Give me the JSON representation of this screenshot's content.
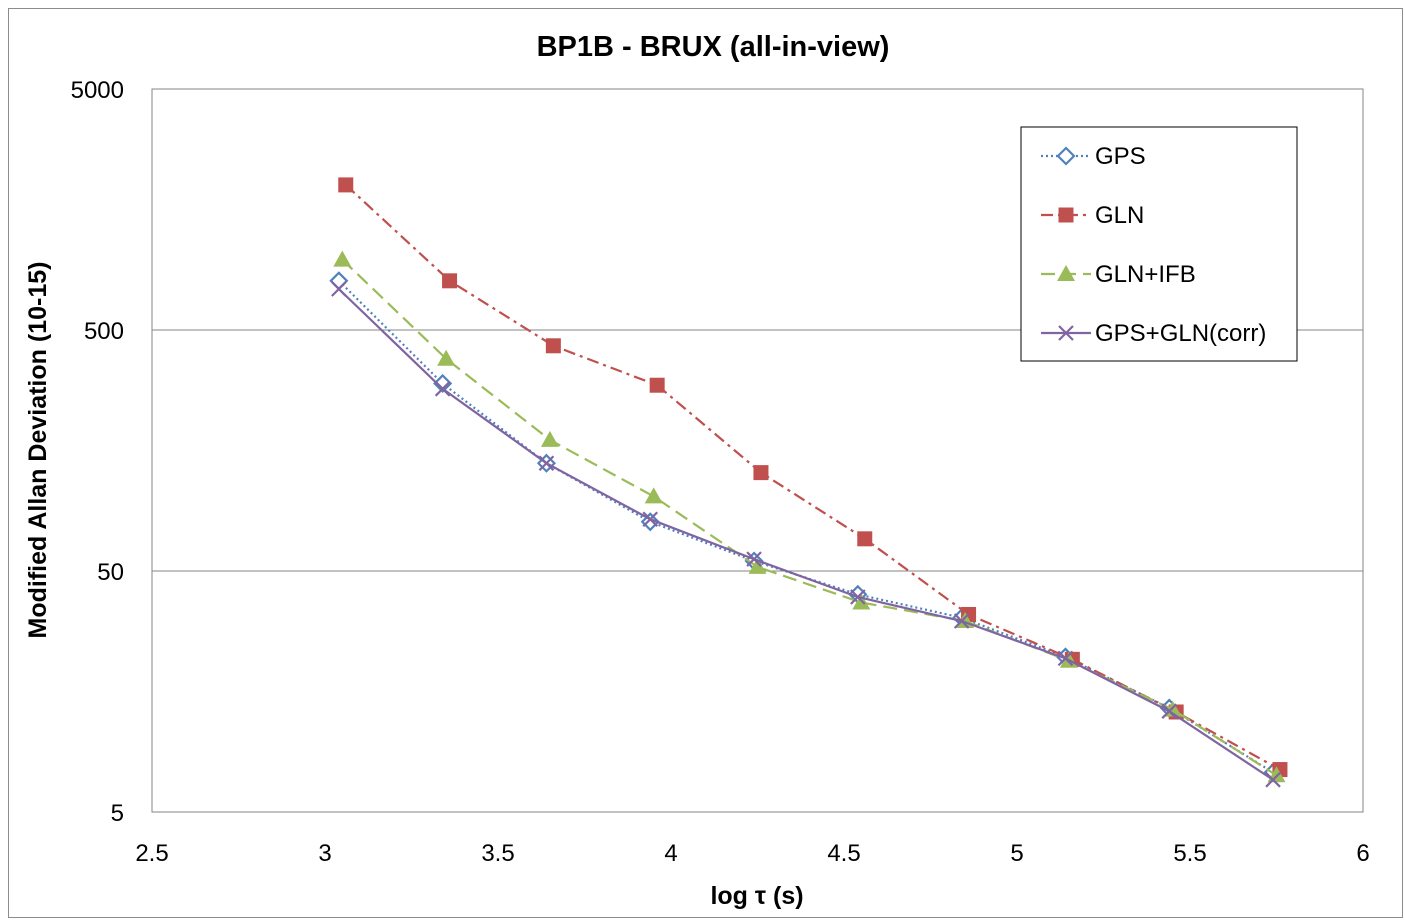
{
  "chart_data": {
    "type": "line",
    "title": "BP1B - BRUX (all-in-view)",
    "xlabel": "log τ (s)",
    "ylabel": "Modified Allan Deviation  (10-15)",
    "xlim": [
      2.5,
      6
    ],
    "ylim": [
      5,
      5000
    ],
    "y_scale": "log",
    "x_ticks": [
      "2.5",
      "3",
      "3.5",
      "4",
      "4.5",
      "5",
      "5.5",
      "6"
    ],
    "y_ticks": [
      "5",
      "50",
      "500",
      "5000"
    ],
    "grid": "horizontal major",
    "legend_position": "top-right",
    "series": [
      {
        "name": "GPS",
        "color": "#4F81BD",
        "marker": "diamond-open",
        "line_style": "dotted",
        "x": [
          3.04,
          3.34,
          3.64,
          3.94,
          4.24,
          4.54,
          4.84,
          5.14,
          5.44,
          5.74
        ],
        "y": [
          800,
          300,
          140,
          80,
          55,
          40,
          32,
          22,
          13.5,
          7.3
        ]
      },
      {
        "name": "GLN",
        "color": "#C0504D",
        "marker": "square-filled",
        "line_style": "dash-dot",
        "x": [
          3.06,
          3.36,
          3.66,
          3.96,
          4.26,
          4.56,
          4.86,
          5.16,
          5.46,
          5.76
        ],
        "y": [
          2000,
          800,
          430,
          295,
          128,
          68,
          33,
          21.5,
          13,
          7.5
        ]
      },
      {
        "name": "GLN+IFB",
        "color": "#9BBB59",
        "marker": "triangle-filled",
        "line_style": "dashed",
        "x": [
          3.05,
          3.35,
          3.65,
          3.95,
          4.25,
          4.55,
          4.85,
          5.15,
          5.45,
          5.75
        ],
        "y": [
          980,
          380,
          175,
          102,
          52,
          37,
          31,
          21.2,
          13.3,
          7.1
        ]
      },
      {
        "name": "GPS+GLN(corr)",
        "color": "#8064A2",
        "marker": "x",
        "line_style": "solid",
        "x": [
          3.04,
          3.34,
          3.64,
          3.94,
          4.24,
          4.54,
          4.84,
          5.14,
          5.44,
          5.74
        ],
        "y": [
          740,
          285,
          140,
          82,
          56,
          39,
          31,
          21.7,
          13.1,
          6.8
        ]
      }
    ]
  }
}
